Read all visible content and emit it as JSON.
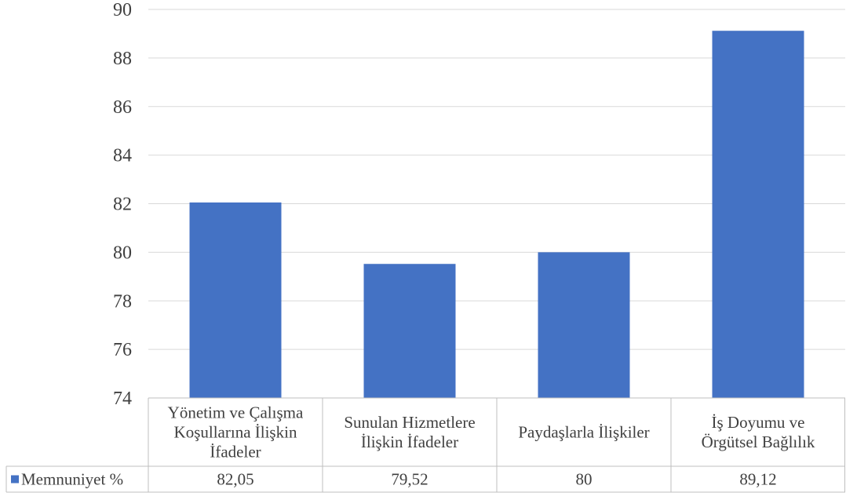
{
  "chart_data": {
    "type": "bar",
    "categories": [
      "Yönetim ve Çalışma Koşullarına İlişkin İfadeler",
      "Sunulan Hizmetlere İlişkin İfadeler",
      "Paydaşlarla İlişkiler",
      "İş Doyumu ve Örgütsel Bağlılık"
    ],
    "category_lines": [
      [
        "Yönetim ve Çalışma",
        "Koşullarına İlişkin",
        "İfadeler"
      ],
      [
        "Sunulan Hizmetlere",
        "İlişkin İfadeler"
      ],
      [
        "Paydaşlarla İlişkiler"
      ],
      [
        "İş Doyumu ve",
        "Örgütsel Bağlılık"
      ]
    ],
    "series": [
      {
        "name": "Memnuniyet %",
        "values": [
          82.05,
          79.52,
          80,
          89.12
        ],
        "value_labels": [
          "82,05",
          "79,52",
          "80",
          "89,12"
        ],
        "color": "#4472C4"
      }
    ],
    "yticks": [
      "74",
      "76",
      "78",
      "80",
      "82",
      "84",
      "86",
      "88",
      "90"
    ],
    "ylim": [
      74,
      90
    ],
    "grid": true,
    "legend_placement": "data-table",
    "data_table": true,
    "colors": {
      "bar": "#4472C4",
      "grid": "#d9d9d9",
      "table_border": "#bfbfbf",
      "text": "#404040"
    }
  }
}
